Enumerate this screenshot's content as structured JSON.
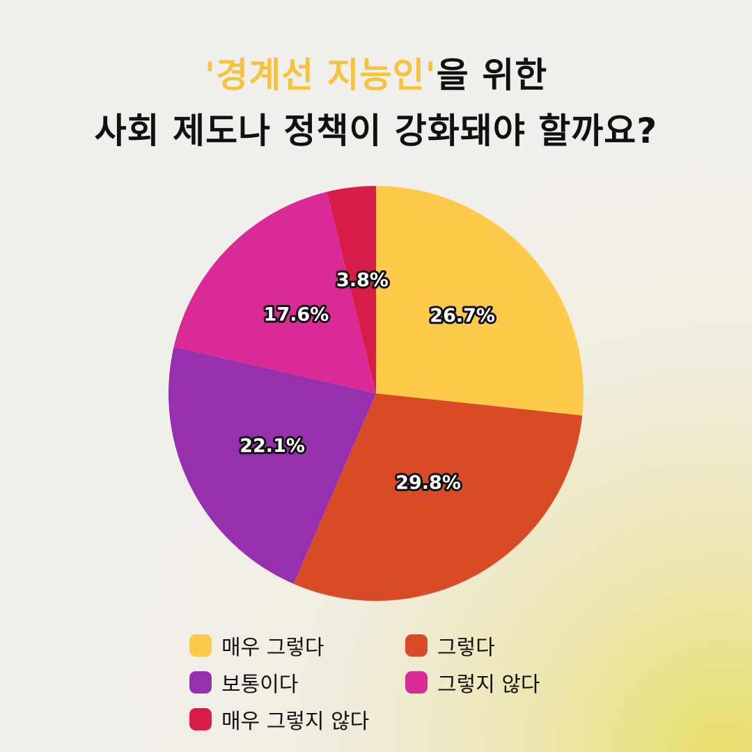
{
  "title": {
    "highlight": "'경계선 지능인'",
    "rest": "을 위한",
    "line2": "사회 제도나 정책이 강화돼야 할까요?"
  },
  "colors": {
    "highlight": "#f7c23c"
  },
  "chart_data": {
    "type": "pie",
    "categories": [
      "매우 그렇다",
      "그렇다",
      "보통이다",
      "그렇지 않다",
      "매우 그렇지 않다"
    ],
    "values": [
      26.7,
      29.8,
      22.1,
      17.6,
      3.8
    ],
    "labels": [
      "26.7%",
      "29.8%",
      "22.1%",
      "17.6%",
      "3.8%"
    ],
    "colors": [
      "#fdca4a",
      "#d94b26",
      "#9630ae",
      "#da2a95",
      "#d81c4a"
    ],
    "start_angle": "12 o'clock",
    "direction": "clockwise",
    "legend_position": "bottom"
  }
}
